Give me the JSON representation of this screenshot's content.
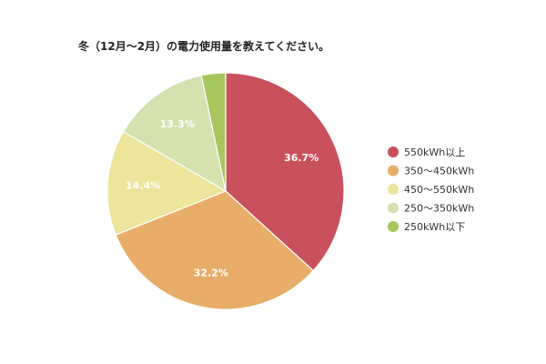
{
  "chart_data": {
    "type": "pie",
    "title": "冬（12月〜2月）の電力使用量を教えてください。",
    "categories": [
      "550kWh以上",
      "350〜450kWh",
      "450〜550kWh",
      "250〜350kWh",
      "250kWh以下"
    ],
    "values": [
      36.7,
      32.2,
      14.4,
      13.3,
      3.3
    ],
    "value_labels": [
      "36.7%",
      "32.2%",
      "14.4%",
      "13.3%",
      ""
    ],
    "colors": [
      "#c9505d",
      "#e8ad68",
      "#ece59b",
      "#d5e2b0",
      "#a7c65e"
    ],
    "legend_position": "right",
    "start_angle": "12 o'clock",
    "direction": "clockwise"
  }
}
